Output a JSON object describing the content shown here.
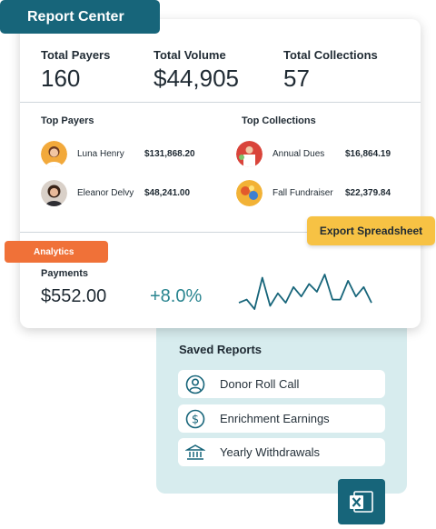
{
  "header": {
    "title": "Report Center"
  },
  "stats": [
    {
      "label": "Total Payers",
      "value": "160"
    },
    {
      "label": "Total Volume",
      "value": "$44,905"
    },
    {
      "label": "Total Collections",
      "value": "57"
    }
  ],
  "top_payers": {
    "label": "Top Payers",
    "items": [
      {
        "name": "Luna Henry",
        "amount": "$131,868.20",
        "avatar": "person-avatar"
      },
      {
        "name": "Eleanor Delvy",
        "amount": "$48,241.00",
        "avatar": "person-avatar"
      }
    ]
  },
  "top_collections": {
    "label": "Top Collections",
    "items": [
      {
        "name": "Annual Dues",
        "amount": "$16,864.19",
        "avatar": "collection-image"
      },
      {
        "name": "Fall Fundraiser",
        "amount": "$22,379.84",
        "avatar": "collection-image"
      }
    ]
  },
  "analytics": {
    "tag": "Analytics",
    "export_label": "Export Spreadsheet",
    "payments_label": "Payments",
    "payments_value": "$552.00",
    "change": "+8.0%",
    "sparkline": [
      8,
      10,
      4,
      24,
      6,
      14,
      8,
      18,
      12,
      20,
      15,
      26,
      10,
      10,
      22,
      12,
      18,
      8
    ]
  },
  "saved_reports": {
    "title": "Saved Reports",
    "items": [
      {
        "label": "Donor Roll Call",
        "icon": "user-circle-icon"
      },
      {
        "label": "Enrichment Earnings",
        "icon": "dollar-circle-icon"
      },
      {
        "label": "Yearly Withdrawals",
        "icon": "bank-icon"
      }
    ]
  },
  "colors": {
    "brand": "#17657a",
    "accent_orange": "#f07138",
    "accent_yellow": "#f7c244",
    "panel": "#d7ecee",
    "positive": "#2a8590"
  }
}
